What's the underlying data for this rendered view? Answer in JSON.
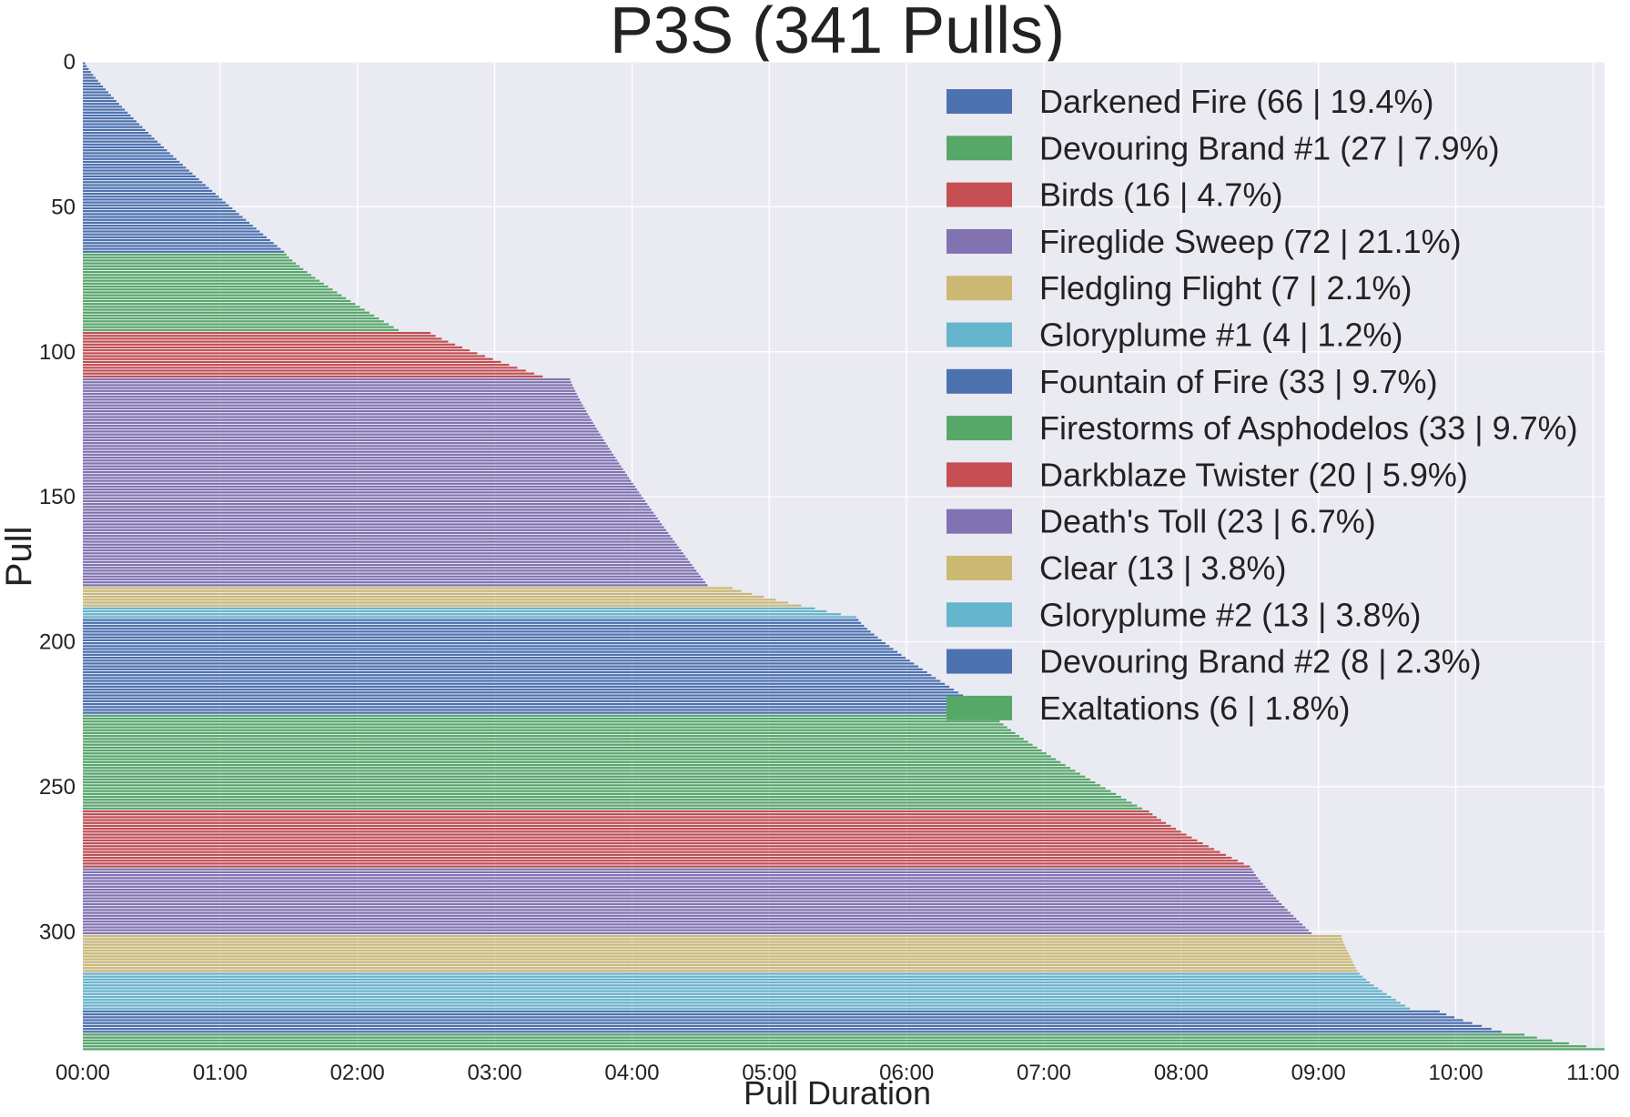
{
  "chart_data": {
    "type": "bar",
    "orientation": "horizontal",
    "title": "P3S (341 Pulls)",
    "xlabel": "Pull Duration",
    "ylabel": "Pull",
    "xlim_seconds": [
      0,
      665
    ],
    "ylim_pulls": [
      341,
      0
    ],
    "y_inverted": true,
    "grid": true,
    "legend_position": "upper right",
    "x_ticks": [
      {
        "seconds": 0,
        "label": "00:00"
      },
      {
        "seconds": 60,
        "label": "01:00"
      },
      {
        "seconds": 120,
        "label": "02:00"
      },
      {
        "seconds": 180,
        "label": "03:00"
      },
      {
        "seconds": 240,
        "label": "04:00"
      },
      {
        "seconds": 300,
        "label": "05:00"
      },
      {
        "seconds": 360,
        "label": "06:00"
      },
      {
        "seconds": 420,
        "label": "07:00"
      },
      {
        "seconds": 480,
        "label": "08:00"
      },
      {
        "seconds": 540,
        "label": "09:00"
      },
      {
        "seconds": 600,
        "label": "10:00"
      },
      {
        "seconds": 660,
        "label": "11:00"
      }
    ],
    "y_ticks": [
      {
        "value": 0,
        "label": "0"
      },
      {
        "value": 50,
        "label": "50"
      },
      {
        "value": 100,
        "label": "100"
      },
      {
        "value": 150,
        "label": "150"
      },
      {
        "value": 200,
        "label": "200"
      },
      {
        "value": 250,
        "label": "250"
      },
      {
        "value": 300,
        "label": "300"
      }
    ],
    "series": [
      {
        "label": "Darkened Fire (66 | 19.4%)",
        "count": 66,
        "color": "#4c72b0",
        "min_duration_s": 1,
        "max_duration_s": 88
      },
      {
        "label": "Devouring Brand #1 (27 | 7.9%)",
        "count": 27,
        "color": "#55a868",
        "min_duration_s": 89,
        "max_duration_s": 138
      },
      {
        "label": "Birds (16 | 4.7%)",
        "count": 16,
        "color": "#c44e52",
        "min_duration_s": 152,
        "max_duration_s": 201
      },
      {
        "label": "Fireglide Sweep (72 | 21.1%)",
        "count": 72,
        "color": "#8172b2",
        "min_duration_s": 213,
        "max_duration_s": 273
      },
      {
        "label": "Fledgling Flight (7 | 2.1%)",
        "count": 7,
        "color": "#ccb974",
        "min_duration_s": 284,
        "max_duration_s": 314
      },
      {
        "label": "Gloryplume #1 (4 | 1.2%)",
        "count": 4,
        "color": "#64b5cd",
        "min_duration_s": 320,
        "max_duration_s": 338
      },
      {
        "label": "Fountain of Fire (33 | 9.7%)",
        "count": 33,
        "color": "#4c72b0",
        "min_duration_s": 339,
        "max_duration_s": 397
      },
      {
        "label": "Firestorms of Asphodelos (33 | 9.7%)",
        "count": 33,
        "color": "#55a868",
        "min_duration_s": 398,
        "max_duration_s": 463
      },
      {
        "label": "Darkblaze Twister (20 | 5.9%)",
        "count": 20,
        "color": "#c44e52",
        "min_duration_s": 466,
        "max_duration_s": 510
      },
      {
        "label": "Death's Toll (23 | 6.7%)",
        "count": 23,
        "color": "#8172b2",
        "min_duration_s": 511,
        "max_duration_s": 537
      },
      {
        "label": "Clear (13 | 3.8%)",
        "count": 13,
        "color": "#ccb974",
        "min_duration_s": 550,
        "max_duration_s": 557
      },
      {
        "label": "Gloryplume #2 (13 | 3.8%)",
        "count": 13,
        "color": "#64b5cd",
        "min_duration_s": 558,
        "max_duration_s": 580
      },
      {
        "label": "Devouring Brand #2 (8 | 2.3%)",
        "count": 8,
        "color": "#4c72b0",
        "min_duration_s": 593,
        "max_duration_s": 620
      },
      {
        "label": "Exaltations (6 | 1.8%)",
        "count": 6,
        "color": "#55a868",
        "min_duration_s": 630,
        "max_duration_s": 665
      }
    ]
  }
}
